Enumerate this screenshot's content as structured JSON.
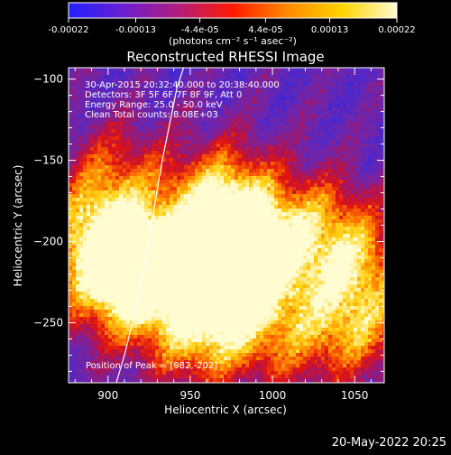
{
  "colorbar": {
    "ticks": [
      "-0.00022",
      "-0.00013",
      "-4.4e-05",
      "4.4e-05",
      "0.00013",
      "0.00022"
    ],
    "tick_values": [
      -0.00022,
      -0.00013,
      -4.4e-05,
      4.4e-05,
      0.00013,
      0.00022
    ],
    "range": [
      -0.00022,
      0.00022
    ],
    "unit_label": "(photons cm⁻² s⁻¹ asec⁻²)",
    "colors": [
      "#2020ff",
      "#6a1fd0",
      "#b21d7c",
      "#ff1a00",
      "#ff8a00",
      "#ffd400",
      "#fffbd0"
    ]
  },
  "title": "Reconstructed RHESSI Image",
  "info_lines": [
    "30-Apr-2015 20:32:40.000 to 20:38:40.000",
    "Detectors: 3F 5F 6F 7F 8F 9F, Att 0",
    "Energy Range: 25.0 - 50.0 keV",
    "Clean    Total counts: 8.08E+03"
  ],
  "peak_label": "Position of Peak = [982,-202]",
  "timestamp": "20-May-2022 20:25",
  "chart_data": {
    "type": "heatmap",
    "title": "Reconstructed RHESSI Image",
    "xlabel": "Heliocentric X (arcsec)",
    "ylabel": "Heliocentric Y (arcsec)",
    "xlim": [
      876,
      1068
    ],
    "ylim": [
      -287,
      -93
    ],
    "x_ticks": [
      900,
      950,
      1000,
      1050
    ],
    "y_ticks": [
      -250,
      -200,
      -150,
      -100
    ],
    "peak": [
      982,
      -202
    ],
    "limb_curve": {
      "x": [
        905,
        910,
        916,
        922,
        928,
        933,
        938,
        942,
        946
      ],
      "y": [
        -287,
        -270,
        -245,
        -215,
        -180,
        -150,
        -125,
        -105,
        -93
      ]
    },
    "hotspots": [
      {
        "x": 982,
        "y": -202,
        "intensity": 1.0
      },
      {
        "x": 920,
        "y": -222,
        "intensity": 0.95
      },
      {
        "x": 900,
        "y": -212,
        "intensity": 0.55
      },
      {
        "x": 896,
        "y": -182,
        "intensity": 0.5
      },
      {
        "x": 968,
        "y": -172,
        "intensity": 0.6
      },
      {
        "x": 976,
        "y": -232,
        "intensity": 0.6
      },
      {
        "x": 958,
        "y": -262,
        "intensity": 0.45
      },
      {
        "x": 1048,
        "y": -212,
        "intensity": 0.65
      },
      {
        "x": 1050,
        "y": -252,
        "intensity": 0.55
      },
      {
        "x": 1032,
        "y": -182,
        "intensity": 0.3
      },
      {
        "x": 1010,
        "y": -265,
        "intensity": 0.3
      },
      {
        "x": 905,
        "y": -150,
        "intensity": 0.3
      }
    ],
    "grid": false,
    "legend": "none"
  }
}
